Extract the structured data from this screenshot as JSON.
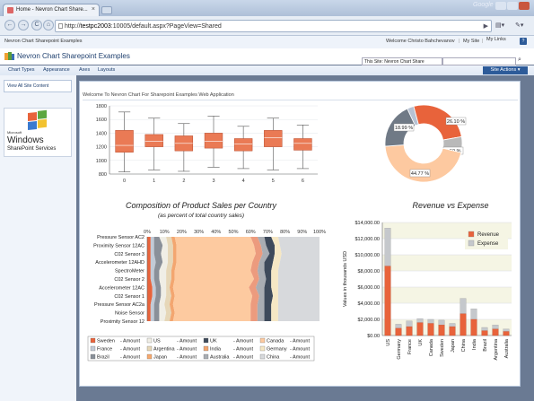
{
  "browser": {
    "tab_title": "Home - Nevron Chart Share...",
    "google_label": "Google",
    "url_prefix": "http://",
    "url_host": "testpc2003",
    "url_rest": ":10005/default.aspx?PageView=Shared",
    "nav_back": "←",
    "nav_forward": "→",
    "nav_reload": "C",
    "nav_home": "⌂"
  },
  "sharepoint": {
    "site_crumb": "Nevron Chart Sharepoint Examples",
    "welcome": "Welcome Christo Bahchevanov",
    "my_site": "My Site",
    "my_links": "My Links",
    "help": "?",
    "site_title": "Nevron Chart Sharepoint Examples",
    "search_scope": "This Site: Nevron Chart Share",
    "search_placeholder": "",
    "nav_items": [
      "Chart Types",
      "Appearance",
      "Axes",
      "Layouts"
    ],
    "site_actions": "Site Actions ▾",
    "view_all": "View All Site Content",
    "logo_top": "Microsoft",
    "logo_mid": "Windows",
    "logo_bot": "SharePoint Services",
    "welcome_app": "Welcome To Nevron Chart For Sharepoint Examples Web Application"
  },
  "colors": {
    "accent": "#e8633b",
    "brand": "#2d5b99"
  },
  "chart_data": [
    {
      "type": "box",
      "x_categories": [
        "0",
        "1",
        "2",
        "3",
        "4",
        "5",
        "6"
      ],
      "y_ticks": [
        800,
        1000,
        1200,
        1400,
        1600,
        1800
      ],
      "ylim": [
        800,
        1800
      ],
      "boxes": [
        {
          "min": 830,
          "q1": 1120,
          "median": 1220,
          "q3": 1440,
          "max": 1710
        },
        {
          "min": 860,
          "q1": 1200,
          "median": 1280,
          "q3": 1380,
          "max": 1620
        },
        {
          "min": 840,
          "q1": 1140,
          "median": 1250,
          "q3": 1360,
          "max": 1540
        },
        {
          "min": 900,
          "q1": 1180,
          "median": 1280,
          "q3": 1400,
          "max": 1650
        },
        {
          "min": 880,
          "q1": 1140,
          "median": 1240,
          "q3": 1320,
          "max": 1500
        },
        {
          "min": 860,
          "q1": 1200,
          "median": 1330,
          "q3": 1440,
          "max": 1620
        },
        {
          "min": 880,
          "q1": 1150,
          "median": 1250,
          "q3": 1320,
          "max": 1520
        }
      ]
    },
    {
      "type": "pie",
      "slices": [
        {
          "label": "2.84 %",
          "value": 2.84,
          "color": "#b7c2d3"
        },
        {
          "label": "26.10 %",
          "value": 26.1,
          "color": "#e8633b"
        },
        {
          "label": "6.59 %",
          "value": 6.59,
          "color": "#b9b9b9"
        },
        {
          "label": "44.77 %",
          "value": 44.77,
          "color": "#fdc9a0"
        },
        {
          "label": "18.99 %",
          "value": 18.99,
          "color": "#707a86"
        }
      ]
    },
    {
      "type": "area",
      "title": "Composition of Product Sales per Country",
      "subtitle": "(as percent of total country sales)",
      "x_ticks": [
        "0%",
        "10%",
        "20%",
        "30%",
        "40%",
        "50%",
        "60%",
        "70%",
        "80%",
        "90%",
        "100%"
      ],
      "categories": [
        "Pressure Sensor AC2",
        "Proximity Sensor 12AC",
        "C02 Sensor 3",
        "Accelerometer 12AHD",
        "SpectroMeter",
        "C02 Sensor 2",
        "Accelerometer 12AC",
        "C02 Sensor 1",
        "Pressure Sensor AC2a",
        "Noise Sensor",
        "Proximity Sensor 12"
      ],
      "series": [
        {
          "name": "Sweden",
          "color": "#e8633b",
          "values": [
            2,
            2,
            2,
            2,
            2,
            2,
            3,
            3,
            2,
            2,
            2
          ]
        },
        {
          "name": "France",
          "color": "#c2cad6",
          "values": [
            2,
            2,
            2,
            3,
            2,
            2,
            2,
            2,
            2,
            2,
            2
          ]
        },
        {
          "name": "Brazil",
          "color": "#8a9099",
          "values": [
            3,
            5,
            4,
            4,
            3,
            3,
            3,
            3,
            3,
            3,
            3
          ]
        },
        {
          "name": "US",
          "color": "#f0eee6",
          "values": [
            4,
            3,
            4,
            3,
            4,
            4,
            3,
            3,
            3,
            4,
            3
          ]
        },
        {
          "name": "Argentina",
          "color": "#e6d7b8",
          "values": [
            3,
            3,
            3,
            3,
            3,
            3,
            2,
            3,
            3,
            3,
            3
          ]
        },
        {
          "name": "Japan",
          "color": "#f3a670",
          "values": [
            2,
            2,
            2,
            2,
            2,
            2,
            2,
            2,
            2,
            2,
            2
          ]
        },
        {
          "name": "UK",
          "color": "#fdcaa0",
          "values": [
            44,
            45,
            46,
            44,
            44,
            46,
            44,
            45,
            45,
            44,
            45
          ]
        },
        {
          "name": "India",
          "color": "#ec9b7e",
          "values": [
            4,
            4,
            4,
            4,
            4,
            3,
            4,
            4,
            4,
            4,
            4
          ]
        },
        {
          "name": "Australia",
          "color": "#a9adb3",
          "values": [
            4,
            3,
            4,
            3,
            4,
            4,
            5,
            3,
            4,
            4,
            4
          ]
        },
        {
          "name": "Canada",
          "color": "#3e4a5b",
          "values": [
            4,
            5,
            3,
            5,
            4,
            3,
            4,
            5,
            4,
            4,
            4
          ]
        },
        {
          "name": "Germany",
          "color": "#f5e7c4",
          "values": [
            4,
            3,
            4,
            4,
            4,
            4,
            4,
            3,
            4,
            4,
            4
          ]
        },
        {
          "name": "China",
          "color": "#d7d9dc",
          "values": [
            24,
            23,
            22,
            23,
            24,
            24,
            24,
            24,
            24,
            24,
            24
          ]
        }
      ],
      "legend": [
        [
          "Sweden",
          "- Amount",
          "#e8633b"
        ],
        [
          "US",
          "- Amount",
          "#f0eee6"
        ],
        [
          "UK",
          "- Amount",
          "#3e4a5b"
        ],
        [
          "Canada",
          "- Amount",
          "#fdcaa0"
        ],
        [
          "France",
          "- Amount",
          "#c2cad6"
        ],
        [
          "Argentina",
          "- Amount",
          "#e6d7b8"
        ],
        [
          "India",
          "- Amount",
          "#f3a670"
        ],
        [
          "Germany",
          "- Amount",
          "#f5e7c4"
        ],
        [
          "Brazil",
          "- Amount",
          "#8a9099"
        ],
        [
          "Japan",
          "- Amount",
          "#f7a86d"
        ],
        [
          "Australia",
          "- Amount",
          "#a9adb3"
        ],
        [
          "China",
          "- Amount",
          "#d7d9dc"
        ]
      ]
    },
    {
      "type": "bar",
      "title": "Revenue vs Expense",
      "ylabel": "Values in thousands USD",
      "y_ticks": [
        "$0.00",
        "$2,000.00",
        "$4,000.00",
        "$6,000.00",
        "$8,000.00",
        "$10,000.00",
        "$12,000.00",
        "$14,000.00"
      ],
      "ylim": [
        0,
        14000
      ],
      "categories": [
        "US",
        "Germany",
        "France",
        "UK",
        "Canada",
        "Sweden",
        "Japan",
        "China",
        "India",
        "Brazil",
        "Argentina",
        "Australia"
      ],
      "series": [
        {
          "name": "Revenue",
          "color": "#e8633b",
          "values": [
            8600,
            900,
            1100,
            1600,
            1500,
            1300,
            1100,
            2700,
            2000,
            600,
            800,
            500
          ]
        },
        {
          "name": "Expense",
          "color": "#c5c8cc",
          "values": [
            13300,
            1400,
            1800,
            2100,
            2000,
            1900,
            1500,
            4600,
            3300,
            1000,
            1300,
            800
          ]
        }
      ]
    }
  ]
}
